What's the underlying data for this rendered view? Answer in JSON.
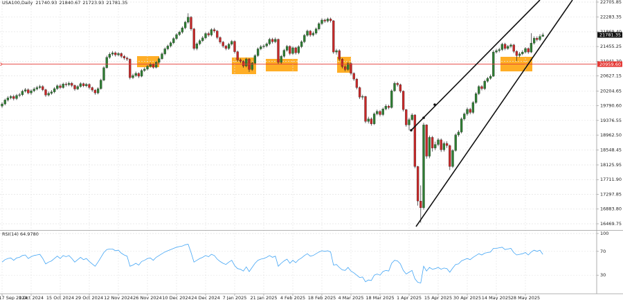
{
  "chart_data": [
    {
      "type": "candlestick",
      "title": "USA100,Daily",
      "categories": [
        "17 Sep 2024",
        null,
        null,
        null,
        null,
        null,
        null,
        null,
        null,
        null,
        "1 Oct 2024",
        null,
        null,
        null,
        null,
        null,
        null,
        null,
        null,
        null,
        "15 Oct 2024",
        null,
        null,
        null,
        null,
        null,
        null,
        null,
        null,
        null,
        "29 Oct 2024",
        null,
        null,
        null,
        null,
        null,
        null,
        null,
        null,
        null,
        "12 Nov 2024",
        null,
        null,
        null,
        null,
        null,
        null,
        null,
        null,
        null,
        "26 Nov 2024",
        null,
        null,
        null,
        null,
        null,
        null,
        null,
        null,
        null,
        "10 Dec 2024",
        null,
        null,
        null,
        null,
        null,
        null,
        null,
        null,
        null,
        "24 Dec 2024",
        null,
        null,
        null,
        null,
        null,
        null,
        null,
        null,
        null,
        "7 Jan 2025",
        null,
        null,
        null,
        null,
        null,
        null,
        null,
        null,
        null,
        "21 Jan 2025",
        null,
        null,
        null,
        null,
        null,
        null,
        null,
        null,
        null,
        "4 Feb 2025",
        null,
        null,
        null,
        null,
        null,
        null,
        null,
        null,
        null,
        "18 Feb 2025",
        null,
        null,
        null,
        null,
        null,
        null,
        null,
        null,
        null,
        "4 Mar 2025",
        null,
        null,
        null,
        null,
        null,
        null,
        null,
        null,
        null,
        "18 Mar 2025",
        null,
        null,
        null,
        null,
        null,
        null,
        null,
        null,
        null,
        "1 Apr 2025",
        null,
        null,
        null,
        null,
        null,
        null,
        null,
        null,
        null,
        "15 Apr 2025",
        null,
        null,
        null,
        null,
        null,
        null,
        null,
        null,
        null,
        "30 Apr 2025",
        null,
        null,
        null,
        null,
        null,
        null,
        null,
        null,
        null,
        "14 May 2025",
        null,
        null,
        null,
        null,
        null,
        null,
        null,
        null,
        null,
        "28 May 2025",
        null,
        null,
        null,
        null,
        null,
        null
      ],
      "open": [
        19780,
        19840,
        19950,
        20010,
        20050,
        19990,
        20080,
        20100,
        20200,
        20240,
        20150,
        20210,
        20260,
        20300,
        20330,
        20240,
        20090,
        20140,
        20180,
        20270,
        20350,
        20300,
        20400,
        20380,
        20420,
        20360,
        20260,
        20330,
        20410,
        20350,
        20390,
        20300,
        20230,
        20150,
        20270,
        20510,
        20860,
        21150,
        21240,
        21280,
        21220,
        21260,
        21180,
        21130,
        21100,
        20580,
        20640,
        20700,
        20620,
        20780,
        20820,
        20900,
        20950,
        20870,
        21010,
        21110,
        21250,
        21390,
        21470,
        21560,
        21680,
        21790,
        21860,
        21980,
        22140,
        22280,
        21950,
        21400,
        21530,
        21620,
        21700,
        21820,
        21780,
        21930,
        21890,
        21710,
        21580,
        21470,
        21400,
        21520,
        21600,
        21310,
        21080,
        21040,
        20910,
        21100,
        20810,
        20990,
        21200,
        21390,
        21450,
        21470,
        21530,
        21660,
        21590,
        21660,
        21010,
        21180,
        21350,
        21460,
        21260,
        21420,
        21280,
        21450,
        21590,
        21770,
        21890,
        21780,
        21830,
        21950,
        22100,
        22200,
        22170,
        22230,
        22180,
        21300,
        21340,
        21100,
        20890,
        20810,
        20980,
        20700,
        20540,
        20300,
        20030,
        20050,
        19350,
        19420,
        19280,
        19560,
        19630,
        19540,
        19700,
        19780,
        19740,
        20210,
        20420,
        20380,
        20200,
        19680,
        19250,
        19400,
        19530,
        18080,
        17110,
        16920,
        19250,
        18370,
        18900,
        18600,
        18700,
        18830,
        18550,
        18730,
        18670,
        18080,
        18530,
        18970,
        19050,
        19420,
        19560,
        19690,
        19600,
        19880,
        20130,
        20330,
        20270,
        20480,
        20560,
        20620,
        21300,
        21340,
        21370,
        21520,
        21400,
        21460,
        21500,
        21320,
        21200,
        21250,
        21300,
        21400,
        21300,
        21550,
        21690,
        21650,
        21740.93
      ],
      "high": [
        19890,
        19990,
        20060,
        20090,
        20100,
        20120,
        20150,
        20240,
        20290,
        20280,
        20250,
        20310,
        20350,
        20380,
        20370,
        20270,
        20190,
        20230,
        20310,
        20390,
        20400,
        20440,
        20450,
        20470,
        20460,
        20390,
        20370,
        20450,
        20440,
        20430,
        20420,
        20330,
        20260,
        20310,
        20550,
        20900,
        21200,
        21290,
        21330,
        21320,
        21300,
        21290,
        21220,
        21170,
        21120,
        20690,
        20750,
        20730,
        20820,
        20870,
        20940,
        21000,
        20980,
        21050,
        21150,
        21290,
        21430,
        21510,
        21600,
        21720,
        21830,
        21900,
        22020,
        22180,
        22390,
        22310,
        21980,
        21570,
        21660,
        21750,
        21860,
        21870,
        21970,
        21980,
        21920,
        21740,
        21610,
        21500,
        21560,
        21640,
        21630,
        21340,
        21120,
        21070,
        21140,
        21130,
        21030,
        21240,
        21430,
        21500,
        21520,
        21570,
        21700,
        21700,
        21710,
        21680,
        21220,
        21390,
        21500,
        21490,
        21460,
        21450,
        21490,
        21630,
        21810,
        21930,
        21920,
        21880,
        21990,
        22140,
        22250,
        22240,
        22270,
        22270,
        22200,
        21390,
        21380,
        21130,
        20940,
        21020,
        21010,
        20730,
        20570,
        20330,
        20100,
        20070,
        19480,
        19460,
        19600,
        19680,
        19670,
        19740,
        19830,
        19820,
        20250,
        20470,
        20460,
        20410,
        20220,
        19700,
        19450,
        19580,
        19550,
        18100,
        17550,
        19310,
        19270,
        18950,
        18940,
        18780,
        18880,
        18870,
        18780,
        18790,
        18700,
        18570,
        19010,
        19100,
        19460,
        19600,
        19740,
        19730,
        19920,
        20170,
        20370,
        20370,
        20520,
        20600,
        20670,
        21350,
        21390,
        21420,
        21560,
        21560,
        21500,
        21540,
        21530,
        21350,
        21300,
        21350,
        21440,
        21430,
        21830,
        21740,
        21740,
        21800,
        21840.67
      ],
      "low": [
        19730,
        19800,
        19910,
        19970,
        19940,
        19950,
        20030,
        20060,
        20160,
        20110,
        20100,
        20170,
        20220,
        20260,
        20200,
        20040,
        20050,
        20100,
        20140,
        20230,
        20260,
        20270,
        20330,
        20340,
        20310,
        20210,
        20230,
        20300,
        20310,
        20310,
        20250,
        20180,
        20100,
        20110,
        20240,
        20480,
        20830,
        21110,
        21190,
        21170,
        21180,
        21130,
        21080,
        21050,
        20530,
        20540,
        20600,
        20570,
        20590,
        20740,
        20780,
        20860,
        20830,
        20840,
        20970,
        21080,
        21210,
        21350,
        21430,
        21520,
        21640,
        21750,
        21820,
        21940,
        22100,
        21900,
        21350,
        21350,
        21490,
        21580,
        21660,
        21730,
        21740,
        21840,
        21660,
        21530,
        21420,
        21350,
        21360,
        21480,
        21260,
        21030,
        20990,
        20860,
        20870,
        20740,
        20770,
        20950,
        21160,
        21350,
        21400,
        21430,
        21490,
        21540,
        21550,
        20960,
        20970,
        21140,
        21310,
        21210,
        21220,
        21230,
        21240,
        21410,
        21550,
        21730,
        21730,
        21740,
        21790,
        21910,
        22060,
        22120,
        22130,
        22130,
        21250,
        21230,
        21050,
        20840,
        20760,
        20770,
        20650,
        20490,
        20250,
        19980,
        19960,
        19300,
        19290,
        19230,
        19250,
        19520,
        19490,
        19500,
        19660,
        19690,
        19710,
        20180,
        20330,
        20150,
        19630,
        19200,
        19100,
        19360,
        18030,
        16980,
        16500,
        16870,
        18300,
        18310,
        18500,
        18540,
        18650,
        18490,
        18500,
        18600,
        17980,
        18040,
        18500,
        18920,
        19010,
        19370,
        19510,
        19550,
        19560,
        19840,
        20090,
        20220,
        20230,
        20440,
        20520,
        20600,
        21260,
        21290,
        21330,
        21350,
        21360,
        21410,
        21270,
        21050,
        21150,
        21210,
        21260,
        21250,
        21270,
        21510,
        21600,
        21610,
        21723.93
      ],
      "close": [
        19840,
        19950,
        20010,
        20050,
        19990,
        20080,
        20100,
        20200,
        20240,
        20150,
        20210,
        20260,
        20300,
        20330,
        20240,
        20090,
        20140,
        20180,
        20270,
        20350,
        20300,
        20400,
        20380,
        20420,
        20360,
        20260,
        20330,
        20410,
        20350,
        20390,
        20300,
        20230,
        20150,
        20270,
        20510,
        20860,
        21150,
        21240,
        21280,
        21220,
        21260,
        21180,
        21130,
        21100,
        20580,
        20640,
        20700,
        20620,
        20780,
        20820,
        20900,
        20950,
        20870,
        21010,
        21110,
        21250,
        21390,
        21470,
        21560,
        21680,
        21790,
        21860,
        21980,
        22140,
        22280,
        21950,
        21400,
        21530,
        21620,
        21700,
        21820,
        21780,
        21930,
        21890,
        21710,
        21580,
        21470,
        21400,
        21520,
        21600,
        21310,
        21080,
        21040,
        20910,
        21100,
        20810,
        20990,
        21200,
        21390,
        21450,
        21470,
        21530,
        21660,
        21590,
        21660,
        21010,
        21180,
        21350,
        21460,
        21260,
        21420,
        21280,
        21450,
        21590,
        21770,
        21890,
        21780,
        21830,
        21950,
        22100,
        22200,
        22170,
        22230,
        22180,
        21300,
        21340,
        21100,
        20890,
        20810,
        20980,
        20700,
        20540,
        20300,
        20030,
        20050,
        19350,
        19420,
        19280,
        19560,
        19630,
        19540,
        19700,
        19780,
        19740,
        20210,
        20420,
        20380,
        20200,
        19680,
        19250,
        19400,
        19530,
        18080,
        17110,
        16920,
        19250,
        18370,
        18900,
        18600,
        18700,
        18830,
        18550,
        18730,
        18670,
        18080,
        18530,
        18970,
        19050,
        19420,
        19560,
        19690,
        19600,
        19880,
        20130,
        20330,
        20270,
        20480,
        20560,
        20620,
        21300,
        21340,
        21370,
        21520,
        21400,
        21460,
        21500,
        21320,
        21200,
        21250,
        21300,
        21400,
        21300,
        21550,
        21690,
        21650,
        21740,
        21781.35
      ],
      "up_color": "#2e7d32",
      "down_color": "#c62828",
      "ylim": [
        16333,
        22764
      ],
      "yticks": [
        22705.85,
        22283.35,
        {
          "value": 21869.4,
          "label": "21869.40"
        },
        21455.25,
        {
          "value": 21041.2,
          "label": "21041.20"
        },
        20627.15,
        20204.65,
        {
          "value": 19790.6,
          "label": "19790.60"
        },
        19376.55,
        {
          "value": 18962.5,
          "label": "18962.50"
        },
        18548.45,
        18125.95,
        {
          "value": 17711.9,
          "label": "17711.90"
        },
        17297.85,
        {
          "value": 16883.8,
          "label": "16883.80"
        },
        16469.75
      ],
      "grid": true,
      "hline": {
        "value": 20959.6,
        "label": "20959.60",
        "color": "#e53935"
      }
    },
    {
      "type": "line",
      "title": "RSI(14) 64.9780",
      "values": [
        52,
        56,
        58,
        59,
        55,
        59,
        60,
        63,
        64,
        58,
        61,
        63,
        64,
        65,
        58,
        49,
        52,
        54,
        58,
        62,
        58,
        63,
        61,
        63,
        58,
        52,
        56,
        60,
        56,
        58,
        53,
        49,
        45,
        52,
        60,
        68,
        73,
        74,
        74,
        71,
        72,
        67,
        64,
        62,
        45,
        47,
        50,
        47,
        53,
        55,
        58,
        59,
        55,
        60,
        63,
        66,
        69,
        71,
        73,
        75,
        77,
        78,
        79,
        81,
        82,
        68,
        52,
        55,
        58,
        60,
        63,
        61,
        65,
        63,
        57,
        53,
        50,
        48,
        52,
        55,
        46,
        41,
        40,
        37,
        44,
        36,
        43,
        50,
        55,
        57,
        58,
        60,
        63,
        60,
        62,
        45,
        50,
        54,
        57,
        50,
        55,
        51,
        56,
        59,
        63,
        66,
        62,
        63,
        66,
        69,
        71,
        70,
        71,
        69,
        47,
        48,
        43,
        39,
        38,
        43,
        37,
        34,
        30,
        26,
        27,
        19,
        22,
        21,
        30,
        32,
        30,
        36,
        38,
        37,
        50,
        55,
        54,
        49,
        38,
        32,
        35,
        38,
        24,
        18,
        17,
        45,
        37,
        43,
        40,
        41,
        43,
        40,
        42,
        41,
        35,
        42,
        48,
        49,
        54,
        56,
        58,
        56,
        60,
        63,
        66,
        64,
        67,
        68,
        69,
        75,
        75,
        76,
        77,
        73,
        74,
        75,
        68,
        64,
        65,
        66,
        68,
        64,
        69,
        72,
        70,
        72,
        64.978
      ],
      "color": "#42a5f5",
      "ylim": [
        0,
        100
      ],
      "yticks": [
        30,
        70,
        100
      ],
      "grid": true
    }
  ]
}
